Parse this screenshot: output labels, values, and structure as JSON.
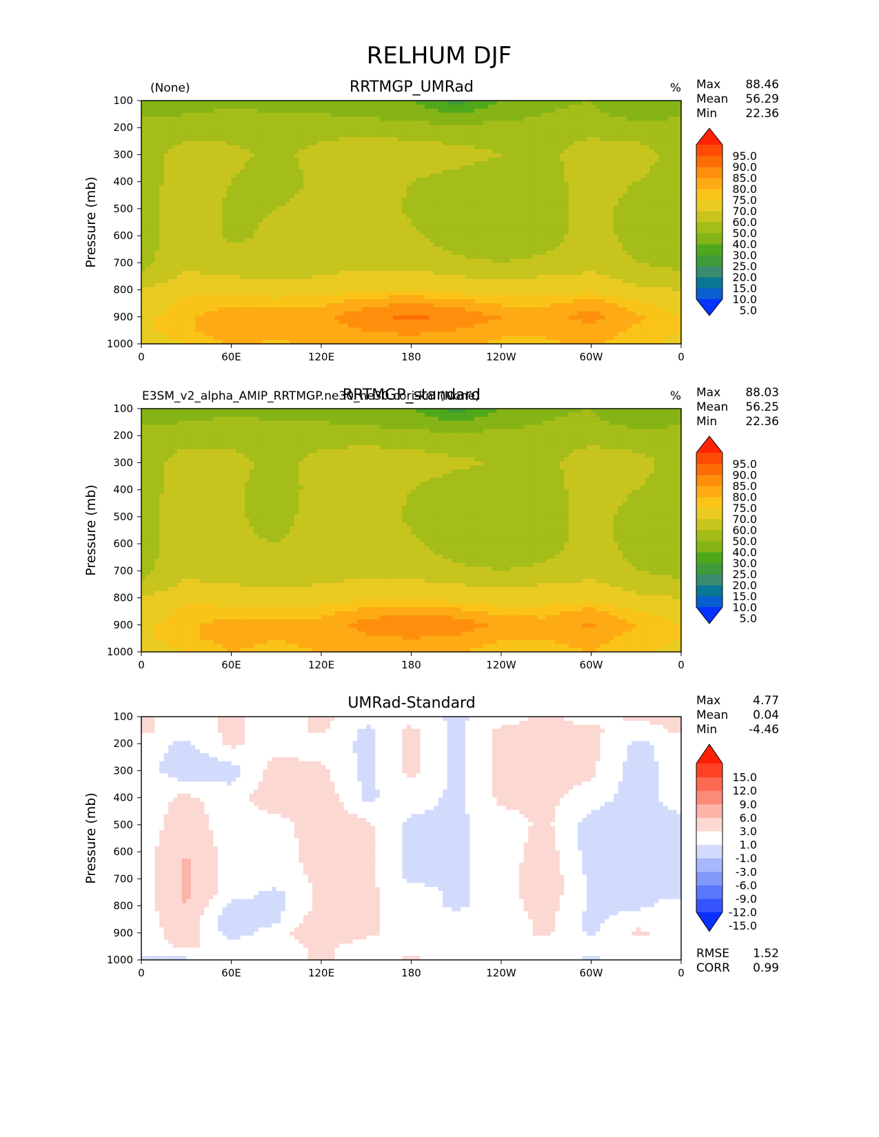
{
  "figure": {
    "title": "RELHUM DJF",
    "y_axis_label": "Pressure (mb)",
    "x_ticks": [
      "0",
      "60E",
      "120E",
      "180",
      "120W",
      "60W",
      "0"
    ],
    "y_ticks": [
      "100",
      "200",
      "300",
      "400",
      "500",
      "600",
      "700",
      "800",
      "900",
      "1000"
    ]
  },
  "colors": {
    "field": [
      "#0533ff",
      "#0b5ed0",
      "#0a7797",
      "#3b8c6e",
      "#3f9a3a",
      "#4fa81b",
      "#86b416",
      "#a4bd18",
      "#c8c41e",
      "#e9cb22",
      "#fac318",
      "#fdaa14",
      "#fd8f0c",
      "#fd6c07",
      "#fd4b04",
      "#ff2304"
    ],
    "diff": [
      "#0a30fe",
      "#3655fe",
      "#5a78fc",
      "#8399f9",
      "#a6b7fb",
      "#d2dbfc",
      "#ffffff",
      "#fcd8d3",
      "#fcb3a8",
      "#fc8a78",
      "#fd6a52",
      "#fe4224",
      "#ff1f06"
    ]
  },
  "panels": [
    {
      "title": "RRTMGP_UMRad",
      "left_label": "(None)",
      "units": "%",
      "stats": [
        {
          "label": "Max",
          "value": "88.46"
        },
        {
          "label": "Mean",
          "value": "56.29"
        },
        {
          "label": "Min",
          "value": "22.36"
        }
      ],
      "colorbar_labels": [
        "95.0",
        "90.0",
        "85.0",
        "80.0",
        "75.0",
        "70.0",
        "60.0",
        "50.0",
        "40.0",
        "30.0",
        "25.0",
        "20.0",
        "15.0",
        "10.0",
        "5.0"
      ]
    },
    {
      "title": "RRTMGP_standard",
      "left_label": "E3SM_v2_alpha_AMIP_RRTMGP.ne30_ne30.cori-knl (None)",
      "units": "%",
      "stats": [
        {
          "label": "Max",
          "value": "88.03"
        },
        {
          "label": "Mean",
          "value": "56.25"
        },
        {
          "label": "Min",
          "value": "22.36"
        }
      ],
      "colorbar_labels": [
        "95.0",
        "90.0",
        "85.0",
        "80.0",
        "75.0",
        "70.0",
        "60.0",
        "50.0",
        "40.0",
        "30.0",
        "25.0",
        "20.0",
        "15.0",
        "10.0",
        "5.0"
      ]
    },
    {
      "title": "UMRad-Standard",
      "left_label": "",
      "units": "",
      "stats": [
        {
          "label": "Max",
          "value": "4.77"
        },
        {
          "label": "Mean",
          "value": "0.04"
        },
        {
          "label": "Min",
          "value": "-4.46"
        }
      ],
      "colorbar_labels": [
        "15.0",
        "12.0",
        "9.0",
        "6.0",
        "3.0",
        "1.0",
        "-1.0",
        "-3.0",
        "-6.0",
        "-9.0",
        "-12.0",
        "-15.0"
      ],
      "extra_stats": [
        {
          "label": "RMSE",
          "value": "1.52"
        },
        {
          "label": "CORR",
          "value": "0.99"
        }
      ]
    }
  ],
  "chart_data": [
    {
      "type": "heatmap",
      "title": "RRTMGP_UMRad",
      "ylabel": "Pressure (mb)",
      "x_ticks": [
        "0",
        "60E",
        "120E",
        "180",
        "120W",
        "60W",
        "0"
      ],
      "y_ticks": [
        100,
        200,
        300,
        400,
        500,
        600,
        700,
        800,
        900,
        1000
      ],
      "ylim": [
        1000,
        100
      ],
      "colorbar_levels": [
        5,
        10,
        15,
        20,
        25,
        30,
        40,
        50,
        60,
        70,
        75,
        80,
        85,
        90,
        95
      ],
      "x": [
        0,
        30,
        60,
        90,
        120,
        150,
        180,
        210,
        240,
        270,
        300,
        330,
        360
      ],
      "y": [
        100,
        150,
        200,
        300,
        400,
        500,
        600,
        700,
        750,
        800,
        850,
        900,
        950,
        1000
      ],
      "z": [
        [
          32,
          35,
          38,
          37,
          36,
          35,
          30,
          22,
          30,
          38,
          40,
          30,
          32
        ],
        [
          38,
          40,
          42,
          40,
          40,
          38,
          34,
          30,
          34,
          40,
          42,
          36,
          38
        ],
        [
          45,
          45,
          47,
          46,
          47,
          46,
          45,
          43,
          45,
          46,
          47,
          44,
          45
        ],
        [
          45,
          55,
          52,
          48,
          53,
          57,
          56,
          54,
          50,
          48,
          55,
          55,
          45
        ],
        [
          45,
          56,
          50,
          46,
          52,
          56,
          50,
          46,
          44,
          45,
          56,
          50,
          45
        ],
        [
          45,
          57,
          48,
          50,
          54,
          56,
          48,
          42,
          42,
          45,
          55,
          45,
          44
        ],
        [
          46,
          57,
          48,
          52,
          54,
          56,
          52,
          45,
          44,
          46,
          55,
          46,
          45
        ],
        [
          47,
          56,
          54,
          55,
          55,
          56,
          55,
          52,
          50,
          52,
          56,
          50,
          47
        ],
        [
          52,
          62,
          60,
          58,
          60,
          64,
          64,
          60,
          58,
          60,
          62,
          56,
          52
        ],
        [
          60,
          68,
          66,
          65,
          66,
          70,
          70,
          68,
          66,
          66,
          68,
          62,
          60
        ],
        [
          64,
          72,
          74,
          74,
          74,
          78,
          80,
          78,
          74,
          74,
          78,
          72,
          66
        ],
        [
          68,
          74,
          78,
          77,
          78,
          84,
          86,
          84,
          80,
          78,
          82,
          76,
          70
        ],
        [
          68,
          74,
          78,
          76,
          78,
          80,
          81,
          80,
          76,
          76,
          78,
          74,
          70
        ],
        [
          66,
          70,
          76,
          74,
          76,
          78,
          78,
          76,
          74,
          74,
          76,
          72,
          68
        ]
      ]
    },
    {
      "type": "heatmap",
      "title": "RRTMGP_standard",
      "ylabel": "Pressure (mb)",
      "x_ticks": [
        "0",
        "60E",
        "120E",
        "180",
        "120W",
        "60W",
        "0"
      ],
      "y_ticks": [
        100,
        200,
        300,
        400,
        500,
        600,
        700,
        800,
        900,
        1000
      ],
      "ylim": [
        1000,
        100
      ],
      "colorbar_levels": [
        5,
        10,
        15,
        20,
        25,
        30,
        40,
        50,
        60,
        70,
        75,
        80,
        85,
        90,
        95
      ],
      "x": [
        0,
        30,
        60,
        90,
        120,
        150,
        180,
        210,
        240,
        270,
        300,
        330,
        360
      ],
      "y": [
        100,
        150,
        200,
        300,
        400,
        500,
        600,
        700,
        750,
        800,
        850,
        900,
        950,
        1000
      ],
      "z": [
        [
          32,
          35,
          38,
          37,
          36,
          35,
          30,
          22,
          30,
          38,
          40,
          30,
          32
        ],
        [
          38,
          40,
          42,
          40,
          40,
          38,
          34,
          30,
          34,
          40,
          42,
          36,
          38
        ],
        [
          45,
          46,
          47,
          46,
          47,
          46,
          45,
          43,
          45,
          46,
          47,
          44,
          45
        ],
        [
          45,
          55,
          53,
          47,
          53,
          56,
          55,
          52,
          49,
          48,
          55,
          54,
          45
        ],
        [
          45,
          56,
          52,
          45,
          54,
          56,
          50,
          45,
          44,
          45,
          56,
          50,
          45
        ],
        [
          45,
          57,
          52,
          46,
          55,
          56,
          48,
          42,
          42,
          45,
          55,
          45,
          44
        ],
        [
          46,
          57,
          52,
          50,
          55,
          56,
          52,
          45,
          44,
          46,
          55,
          46,
          45
        ],
        [
          47,
          56,
          54,
          54,
          55,
          56,
          55,
          52,
          50,
          52,
          56,
          50,
          47
        ],
        [
          52,
          62,
          60,
          58,
          60,
          63,
          63,
          60,
          58,
          60,
          62,
          56,
          52
        ],
        [
          60,
          68,
          66,
          65,
          66,
          69,
          69,
          67,
          65,
          66,
          68,
          62,
          60
        ],
        [
          64,
          72,
          73,
          73,
          73,
          77,
          79,
          77,
          73,
          73,
          77,
          71,
          66
        ],
        [
          68,
          74,
          77,
          76,
          77,
          82,
          85,
          83,
          79,
          77,
          81,
          75,
          70
        ],
        [
          68,
          74,
          77,
          75,
          77,
          79,
          80,
          79,
          75,
          75,
          77,
          73,
          70
        ],
        [
          66,
          70,
          75,
          73,
          75,
          77,
          77,
          75,
          73,
          73,
          75,
          71,
          68
        ]
      ]
    },
    {
      "type": "heatmap",
      "title": "UMRad-Standard",
      "ylabel": "Pressure (mb)",
      "x_ticks": [
        "0",
        "60E",
        "120E",
        "180",
        "120W",
        "60W",
        "0"
      ],
      "y_ticks": [
        100,
        200,
        300,
        400,
        500,
        600,
        700,
        800,
        900,
        1000
      ],
      "ylim": [
        1000,
        100
      ],
      "colorbar_levels": [
        -15,
        -12,
        -9,
        -6,
        -3,
        -1,
        1,
        3,
        6,
        9,
        12,
        15
      ],
      "x": [
        0,
        30,
        60,
        90,
        120,
        150,
        180,
        210,
        240,
        270,
        300,
        330,
        360
      ],
      "y": [
        100,
        150,
        200,
        300,
        400,
        500,
        600,
        700,
        750,
        800,
        850,
        900,
        950,
        1000
      ],
      "z": [
        [
          1.5,
          0,
          1.5,
          0,
          1.5,
          0,
          0,
          -1.5,
          0,
          1.5,
          0,
          1.5,
          1.5
        ],
        [
          1.5,
          0,
          1.5,
          0,
          1.5,
          -1.5,
          1.5,
          -1.5,
          1.5,
          1.5,
          1.5,
          0,
          1.5
        ],
        [
          0,
          -1.5,
          1.5,
          0,
          0,
          -1.5,
          1.5,
          -1.5,
          1.5,
          1.5,
          1.5,
          -1.5,
          0
        ],
        [
          0,
          -2.5,
          -2,
          2,
          1.5,
          -1.5,
          1.5,
          -1.5,
          1.5,
          2,
          1.5,
          -2,
          0
        ],
        [
          0,
          1.5,
          0,
          2.5,
          2.5,
          -1.5,
          0,
          -1.5,
          1.5,
          1.5,
          0,
          -2,
          0
        ],
        [
          0,
          2,
          0,
          0,
          2.5,
          1.5,
          -1.5,
          -1.5,
          0,
          1.5,
          -2,
          -2.5,
          -1.5
        ],
        [
          0,
          3,
          0,
          0,
          2,
          1.5,
          -1.5,
          -1.5,
          0,
          2,
          -2,
          -2.5,
          -1.5
        ],
        [
          0,
          3.5,
          0,
          0,
          1.5,
          1.5,
          -1.5,
          -1.5,
          0,
          2.5,
          -1.5,
          -1.5,
          -1.5
        ],
        [
          0,
          3.5,
          0,
          -1.5,
          1.5,
          1.5,
          0,
          -1.5,
          0,
          2.5,
          -1.5,
          -1.5,
          -1.5
        ],
        [
          0,
          3,
          -1.5,
          -1.5,
          1.5,
          1.5,
          0,
          -1.5,
          0,
          2,
          -1.5,
          -1.5,
          0
        ],
        [
          0,
          2.5,
          -2.5,
          -1.5,
          2.5,
          1.5,
          0,
          0,
          0,
          1.5,
          -1.5,
          0,
          0
        ],
        [
          0,
          2,
          -2,
          0,
          3,
          1.5,
          0,
          0,
          0,
          1.5,
          -1.5,
          1.5,
          0
        ],
        [
          0,
          1.5,
          0,
          0,
          1.5,
          0,
          0,
          0,
          0,
          0,
          0,
          0,
          0
        ],
        [
          -1.5,
          -1.5,
          0,
          0,
          1.5,
          0,
          1.5,
          0,
          0,
          0,
          -1.5,
          0,
          0
        ]
      ]
    }
  ]
}
